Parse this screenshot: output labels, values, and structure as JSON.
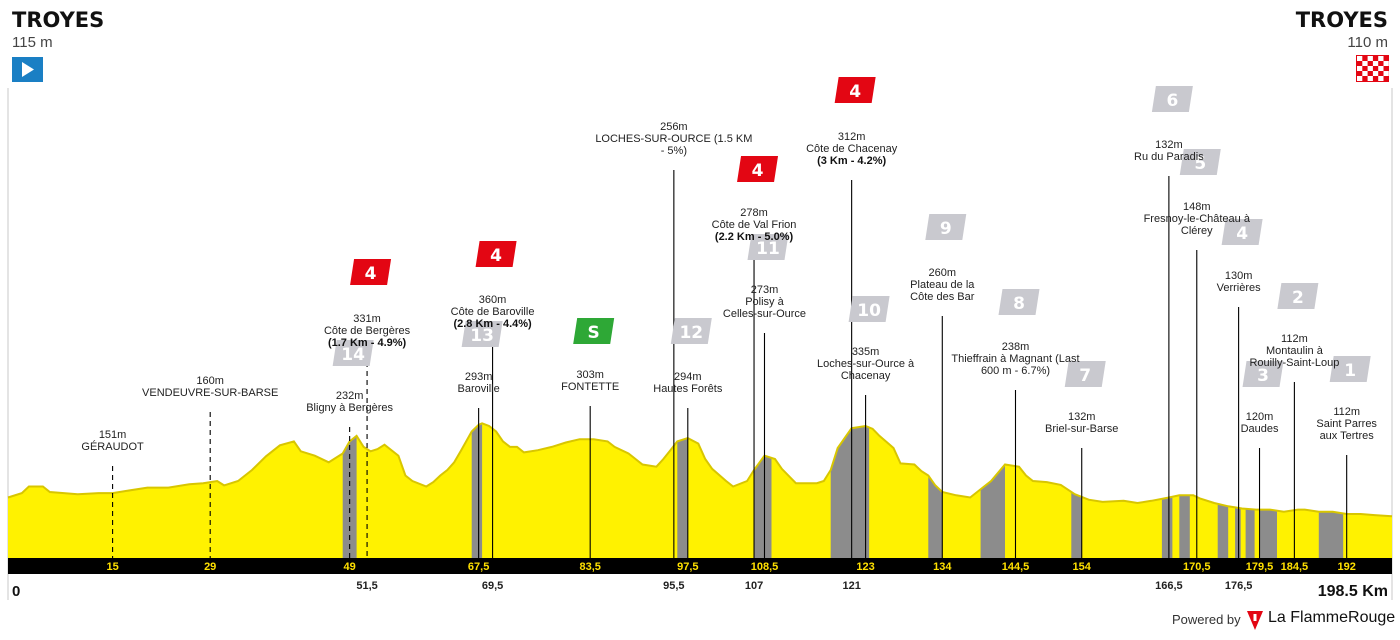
{
  "header": {
    "start_town": "TROYES",
    "start_alt": "115 m",
    "finish_town": "TROYES",
    "finish_alt": "110 m",
    "start_icon": "play-flag-icon",
    "finish_icon": "checkered-flag-icon"
  },
  "footer": {
    "powered": "Powered by",
    "brand": "La FlammeRouge",
    "brand_icon": "flamme-rouge-logo-icon",
    "start_km": "0",
    "end_km": "198.5 Km"
  },
  "colors": {
    "profile_fill": "#fff200",
    "profile_line": "#d8c600",
    "climb_fill": "#8c8c8c",
    "kom_badge": "#e30613",
    "sprint_badge": "#2ea836",
    "other_badge": "#c9c9cf",
    "axis_bar": "#000000"
  },
  "chart_data": {
    "type": "area",
    "x_unit": "km",
    "y_unit": "m",
    "xlim": [
      0,
      198.5
    ],
    "profile": [
      [
        0,
        120
      ],
      [
        2,
        128
      ],
      [
        3,
        140
      ],
      [
        5,
        140
      ],
      [
        6,
        130
      ],
      [
        8,
        128
      ],
      [
        10,
        126
      ],
      [
        13,
        128
      ],
      [
        15,
        128
      ],
      [
        17,
        132
      ],
      [
        20,
        138
      ],
      [
        23,
        138
      ],
      [
        26,
        144
      ],
      [
        28,
        146
      ],
      [
        30,
        150
      ],
      [
        31,
        142
      ],
      [
        33,
        150
      ],
      [
        35,
        170
      ],
      [
        37,
        195
      ],
      [
        39,
        215
      ],
      [
        41,
        222
      ],
      [
        42,
        204
      ],
      [
        44,
        196
      ],
      [
        46,
        184
      ],
      [
        48,
        200
      ],
      [
        49,
        222
      ],
      [
        50,
        232
      ],
      [
        51,
        212
      ],
      [
        52,
        204
      ],
      [
        53,
        208
      ],
      [
        54,
        216
      ],
      [
        56,
        196
      ],
      [
        57,
        160
      ],
      [
        58,
        150
      ],
      [
        60,
        140
      ],
      [
        61,
        148
      ],
      [
        62,
        160
      ],
      [
        63,
        170
      ],
      [
        64,
        184
      ],
      [
        65,
        206
      ],
      [
        66.5,
        240
      ],
      [
        67.5,
        252
      ],
      [
        68,
        255
      ],
      [
        69,
        250
      ],
      [
        70,
        240
      ],
      [
        71,
        222
      ],
      [
        72,
        212
      ],
      [
        73,
        212
      ],
      [
        74,
        202
      ],
      [
        76,
        206
      ],
      [
        78,
        212
      ],
      [
        80,
        220
      ],
      [
        82,
        226
      ],
      [
        84,
        226
      ],
      [
        86,
        222
      ],
      [
        87,
        212
      ],
      [
        89,
        200
      ],
      [
        91,
        180
      ],
      [
        93,
        176
      ],
      [
        94,
        190
      ],
      [
        95,
        206
      ],
      [
        96,
        222
      ],
      [
        97.5,
        228
      ],
      [
        99,
        218
      ],
      [
        100,
        190
      ],
      [
        101,
        172
      ],
      [
        103,
        150
      ],
      [
        104,
        140
      ],
      [
        106,
        150
      ],
      [
        107,
        170
      ],
      [
        108.5,
        196
      ],
      [
        110,
        190
      ],
      [
        111,
        172
      ],
      [
        113,
        146
      ],
      [
        116,
        146
      ],
      [
        117,
        150
      ],
      [
        118,
        170
      ],
      [
        119,
        210
      ],
      [
        121,
        246
      ],
      [
        123,
        250
      ],
      [
        124,
        245
      ],
      [
        125,
        232
      ],
      [
        127,
        210
      ],
      [
        128,
        182
      ],
      [
        130,
        180
      ],
      [
        131,
        168
      ],
      [
        132,
        160
      ],
      [
        133,
        142
      ],
      [
        134,
        130
      ],
      [
        136,
        124
      ],
      [
        138,
        120
      ],
      [
        140,
        140
      ],
      [
        141,
        150
      ],
      [
        143,
        180
      ],
      [
        145,
        176
      ],
      [
        146,
        160
      ],
      [
        147,
        150
      ],
      [
        149,
        148
      ],
      [
        151,
        143
      ],
      [
        153,
        126
      ],
      [
        155,
        116
      ],
      [
        157,
        112
      ],
      [
        160,
        114
      ],
      [
        162,
        110
      ],
      [
        164,
        114
      ],
      [
        166.5,
        120
      ],
      [
        168,
        124
      ],
      [
        170,
        124
      ],
      [
        171,
        118
      ],
      [
        173,
        110
      ],
      [
        175,
        104
      ],
      [
        177,
        100
      ],
      [
        179,
        98
      ],
      [
        181,
        98
      ],
      [
        183,
        94
      ],
      [
        185,
        98
      ],
      [
        186,
        98
      ],
      [
        188,
        94
      ],
      [
        190,
        94
      ],
      [
        192,
        90
      ],
      [
        194,
        90
      ],
      [
        196,
        88
      ],
      [
        198.5,
        86
      ]
    ],
    "climbs": [
      [
        48,
        50
      ],
      [
        66.5,
        68
      ],
      [
        96,
        97.5
      ],
      [
        107,
        109.5
      ],
      [
        118,
        123.5
      ],
      [
        132,
        134
      ],
      [
        139.5,
        143
      ],
      [
        152.5,
        154
      ],
      [
        165.5,
        167
      ],
      [
        168,
        169.5
      ],
      [
        173.5,
        175
      ],
      [
        176,
        176.8
      ],
      [
        177.5,
        178.8
      ],
      [
        179.5,
        182
      ],
      [
        188,
        191.5
      ]
    ],
    "km_marks_inside": [
      "15",
      "29",
      "49",
      "67,5",
      "83,5",
      "97,5",
      "108,5",
      "123",
      "134",
      "144,5",
      "154",
      "170,5",
      "179,5",
      "184,5",
      "192"
    ],
    "km_marks_inside_pos": [
      15,
      29,
      49,
      67.5,
      83.5,
      97.5,
      108.5,
      123,
      134,
      144.5,
      154,
      170.5,
      179.5,
      184.5,
      192
    ],
    "km_marks_below": [
      "51,5",
      "69,5",
      "95,5",
      "107",
      "121",
      "166,5",
      "176,5"
    ],
    "km_marks_below_pos": [
      51.5,
      69.5,
      95.5,
      107,
      121,
      166.5,
      176.5
    ],
    "points": [
      {
        "km": 15,
        "dashed": true,
        "lines": [
          "151m",
          "GÉRAUDOT"
        ]
      },
      {
        "km": 29,
        "dashed": true,
        "lines": [
          "160m",
          "VENDEUVRE-SUR-BARSE"
        ]
      },
      {
        "km": 49,
        "dashed": true,
        "badge": "14",
        "badge_type": "other",
        "lines": [
          "232m",
          "Bligny à Bergères"
        ]
      },
      {
        "km": 51.5,
        "dashed": true,
        "badge": "4",
        "badge_type": "kom",
        "lines": [
          "331m",
          "Côte de Bergères"
        ],
        "bold": "(1.7 Km - 4.9%)"
      },
      {
        "km": 67.5,
        "dashed": false,
        "badge": "13",
        "badge_type": "other",
        "lines": [
          "293m",
          "Baroville"
        ]
      },
      {
        "km": 69.5,
        "dashed": false,
        "badge": "4",
        "badge_type": "kom",
        "lines": [
          "360m",
          "Côte de Baroville"
        ],
        "bold": "(2.8 Km - 4.4%)"
      },
      {
        "km": 83.5,
        "dashed": false,
        "badge": "S",
        "badge_type": "sprint",
        "lines": [
          "303m",
          "FONTETTE"
        ]
      },
      {
        "km": 95.5,
        "dashed": false,
        "lines": [
          "256m",
          "LOCHES-SUR-OURCE (1.5 KM",
          "- 5%)"
        ]
      },
      {
        "km": 97.5,
        "dashed": false,
        "badge": "12",
        "badge_type": "other",
        "lines": [
          "294m",
          "Hautes Forêts"
        ]
      },
      {
        "km": 107,
        "dashed": false,
        "badge": "4",
        "badge_type": "kom",
        "lines": [
          "278m",
          "Côte de Val Frion"
        ],
        "bold": "(2.2 Km - 5.0%)"
      },
      {
        "km": 108.5,
        "dashed": false,
        "badge": "11",
        "badge_type": "other",
        "lines": [
          "273m",
          "Polisy à",
          "Celles-sur-Ource"
        ]
      },
      {
        "km": 121,
        "dashed": false,
        "badge": "4",
        "badge_type": "kom",
        "lines": [
          "312m",
          "Côte de Chacenay"
        ],
        "bold": "(3 Km - 4.2%)"
      },
      {
        "km": 123,
        "dashed": false,
        "badge": "10",
        "badge_type": "other",
        "lines": [
          "335m",
          "Loches-sur-Ource à",
          "Chacenay"
        ]
      },
      {
        "km": 134,
        "dashed": false,
        "badge": "9",
        "badge_type": "other",
        "lines": [
          "260m",
          "Plateau de la",
          "Côte des Bar"
        ]
      },
      {
        "km": 144.5,
        "dashed": false,
        "badge": "8",
        "badge_type": "other",
        "lines": [
          "238m",
          "Thieffrain à Magnant (Last",
          "600 m - 6.7%)"
        ]
      },
      {
        "km": 154,
        "dashed": false,
        "badge": "7",
        "badge_type": "other",
        "lines": [
          "132m",
          "Briel-sur-Barse"
        ]
      },
      {
        "km": 166.5,
        "dashed": false,
        "badge": "6",
        "badge_type": "other",
        "lines": [
          "132m",
          "Ru du Paradis"
        ]
      },
      {
        "km": 170.5,
        "dashed": false,
        "badge": "5",
        "badge_type": "other",
        "lines": [
          "148m",
          "Fresnoy-le-Château à",
          "Clérey"
        ]
      },
      {
        "km": 176.5,
        "dashed": false,
        "badge": "4",
        "badge_type": "other",
        "lines": [
          "130m",
          "Verrières"
        ]
      },
      {
        "km": 179.5,
        "dashed": false,
        "badge": "3",
        "badge_type": "other",
        "lines": [
          "120m",
          "Daudes"
        ]
      },
      {
        "km": 184.5,
        "dashed": false,
        "badge": "2",
        "badge_type": "other",
        "lines": [
          "112m",
          "Montaulin à",
          "Rouilly-Saint-Loup"
        ]
      },
      {
        "km": 192,
        "dashed": false,
        "badge": "1",
        "badge_type": "other",
        "lines": [
          "112m",
          "Saint Parres",
          "aux Tertres"
        ]
      }
    ]
  }
}
